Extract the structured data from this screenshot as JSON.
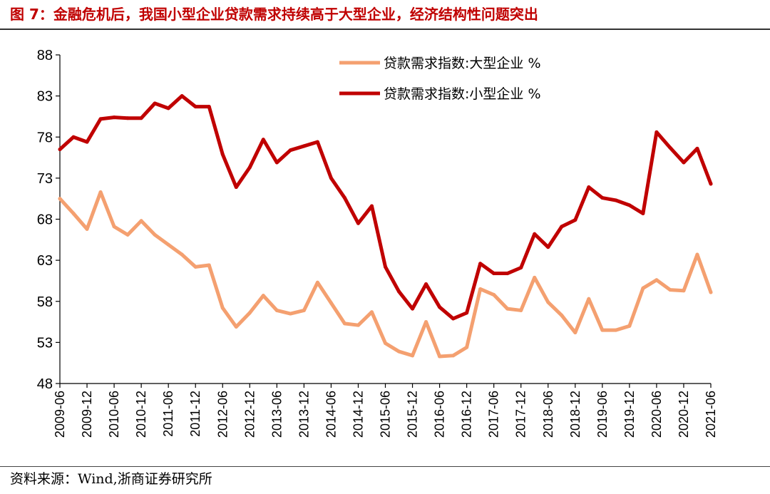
{
  "figure": {
    "title": "图 7：金融危机后，我国小型企业贷款需求持续高于大型企业，经济结构性问题突出",
    "source": "资料来源：Wind,浙商证券研究所"
  },
  "chart_data": {
    "type": "line",
    "title": "金融危机后，我国小型企业贷款需求持续高于大型企业，经济结构性问题突出",
    "xlabel": "",
    "ylabel": "",
    "ylim": [
      48,
      88
    ],
    "yticks": [
      48,
      53,
      58,
      63,
      68,
      73,
      78,
      83,
      88
    ],
    "x": [
      "2009-06",
      "2009-09",
      "2009-12",
      "2010-03",
      "2010-06",
      "2010-09",
      "2010-12",
      "2011-03",
      "2011-06",
      "2011-09",
      "2011-12",
      "2012-03",
      "2012-06",
      "2012-09",
      "2012-12",
      "2013-03",
      "2013-06",
      "2013-09",
      "2013-12",
      "2014-03",
      "2014-06",
      "2014-09",
      "2014-12",
      "2015-03",
      "2015-06",
      "2015-09",
      "2015-12",
      "2016-03",
      "2016-06",
      "2016-09",
      "2016-12",
      "2017-03",
      "2017-06",
      "2017-09",
      "2017-12",
      "2018-03",
      "2018-06",
      "2018-09",
      "2018-12",
      "2019-03",
      "2019-06",
      "2019-09",
      "2019-12",
      "2020-03",
      "2020-06",
      "2020-09",
      "2020-12",
      "2021-03",
      "2021-06"
    ],
    "xtick_labels": [
      "2009-06",
      "2009-12",
      "2010-06",
      "2010-12",
      "2011-06",
      "2011-12",
      "2012-06",
      "2012-12",
      "2013-06",
      "2013-12",
      "2014-06",
      "2014-12",
      "2015-06",
      "2015-12",
      "2016-06",
      "2016-12",
      "2017-06",
      "2017-12",
      "2018-06",
      "2018-12",
      "2019-06",
      "2019-12",
      "2020-06",
      "2020-12",
      "2021-06"
    ],
    "series": [
      {
        "name": "贷款需求指数:大型企业 %",
        "color": "#f4a070",
        "values": [
          70.5,
          68.7,
          66.8,
          71.3,
          67.1,
          66.1,
          67.8,
          66.1,
          64.9,
          63.7,
          62.2,
          62.4,
          57.2,
          54.9,
          56.6,
          58.7,
          56.9,
          56.5,
          56.9,
          60.3,
          57.8,
          55.3,
          55.1,
          56.7,
          52.9,
          51.9,
          51.4,
          55.5,
          51.3,
          51.4,
          52.4,
          59.5,
          58.8,
          57.1,
          56.9,
          60.9,
          57.9,
          56.3,
          54.2,
          58.3,
          54.5,
          54.5,
          55.0,
          59.6,
          60.6,
          59.4,
          59.3,
          63.7,
          59.1
        ]
      },
      {
        "name": "贷款需求指数:小型企业 %",
        "color": "#c00000",
        "values": [
          76.5,
          78.0,
          77.4,
          80.2,
          80.4,
          80.3,
          80.3,
          82.1,
          81.5,
          83.0,
          81.7,
          81.7,
          75.9,
          71.9,
          74.3,
          77.7,
          74.9,
          76.4,
          76.9,
          77.4,
          73.0,
          70.6,
          67.5,
          69.6,
          62.2,
          59.2,
          57.1,
          60.1,
          57.3,
          55.9,
          56.6,
          62.6,
          61.4,
          61.4,
          62.1,
          66.2,
          64.6,
          67.1,
          67.9,
          71.9,
          70.6,
          70.3,
          69.7,
          68.7,
          78.6,
          76.7,
          74.9,
          76.6,
          72.3
        ]
      }
    ],
    "legend": "top-right"
  }
}
